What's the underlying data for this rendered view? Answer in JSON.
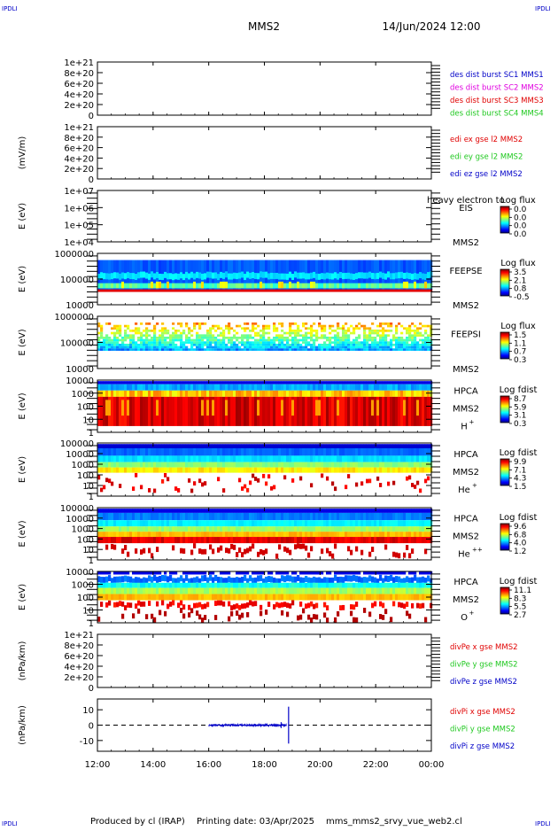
{
  "header": {
    "corner_tl": "IPDLI",
    "corner_tr": "IPDLI",
    "corner_bl": "IPDLI",
    "corner_br": "IPDLI",
    "spacecraft": "MMS2",
    "datetime": "14/Jun/2024 12:00"
  },
  "footer": {
    "produced": "Produced by cl (IRAP)",
    "printing": "Printing date: 03/Apr/2025",
    "file": "mms_mms2_srvy_vue_web2.cl"
  },
  "colors": {
    "red": "#e00000",
    "green": "#1ec81e",
    "blue": "#0000c8",
    "magenta": "#e000e0"
  },
  "chart_data": [
    {
      "id": "p1",
      "type": "line",
      "ylabel": "",
      "ytick_labels": [
        "1e+21",
        "8e+20",
        "6e+20",
        "4e+20",
        "2e+20",
        "0"
      ],
      "ylim": [
        0,
        1e+21
      ],
      "legend": [
        {
          "text": "des dist burst SC1 MMS1",
          "color": "#0000c8"
        },
        {
          "text": "des dist burst SC2 MMS2",
          "color": "#e000e0"
        },
        {
          "text": "des dist burst SC3 MMS3",
          "color": "#e00000"
        },
        {
          "text": "des dist burst SC4 MMS4",
          "color": "#1ec81e"
        }
      ],
      "series": []
    },
    {
      "id": "p2",
      "type": "line",
      "ylabel": "(mV/m)",
      "ytick_labels": [
        "1e+21",
        "8e+20",
        "6e+20",
        "4e+20",
        "2e+20",
        "0"
      ],
      "ylim": [
        0,
        1e+21
      ],
      "legend": [
        {
          "text": "edi ex gse l2 MMS2",
          "color": "#e00000"
        },
        {
          "text": "edi ey gse l2 MMS2",
          "color": "#1ec81e"
        },
        {
          "text": "edi ez gse l2 MMS2",
          "color": "#0000c8"
        }
      ],
      "series": []
    },
    {
      "id": "p3",
      "type": "heatmap",
      "ylabel": "E (eV)",
      "ytick_labels": [
        "1e+07",
        "1e+06",
        "1e+05",
        "1e+04"
      ],
      "yscale": "log",
      "ylim": [
        10000,
        10000000
      ],
      "instrument": "EIS",
      "instrument_sub": "MMS2",
      "overlay_text": "heavy electron to",
      "cbar_title": "Log flux",
      "cbar_ticks": [
        "0.0",
        "0.0",
        "0.0",
        "0.0"
      ],
      "data_extent": []
    },
    {
      "id": "p4",
      "type": "heatmap",
      "ylabel": "E (eV)",
      "ytick_labels": [
        "1000000",
        "100000",
        "10000"
      ],
      "yscale": "log",
      "ylim": [
        10000,
        1000000
      ],
      "instrument": "FEEPSE",
      "instrument_sub": "MMS2",
      "cbar_title": "Log flux",
      "cbar_ticks": [
        "3.5",
        "2.1",
        "0.8",
        "-0.5"
      ],
      "time_extent": [
        12.0,
        24.0
      ]
    },
    {
      "id": "p5",
      "type": "heatmap",
      "ylabel": "E (eV)",
      "ytick_labels": [
        "1000000",
        "100000",
        "10000"
      ],
      "yscale": "log",
      "ylim": [
        10000,
        1000000
      ],
      "instrument": "FEEPSI",
      "instrument_sub": "MMS2",
      "cbar_title": "Log flux",
      "cbar_ticks": [
        "1.5",
        "1.1",
        "0.7",
        "0.3"
      ],
      "time_extent": [
        12.0,
        24.0
      ]
    },
    {
      "id": "p6",
      "type": "heatmap",
      "ylabel": "E (eV)",
      "ytick_labels": [
        "10000",
        "1000",
        "100",
        "10",
        "1"
      ],
      "yscale": "log",
      "ylim": [
        1,
        40000
      ],
      "instrument": "HPCA",
      "instrument_sub": "MMS2",
      "species": "H",
      "species_sup": "+",
      "cbar_title": "Log fdist",
      "cbar_ticks": [
        "8.7",
        "5.9",
        "3.1",
        "0.3"
      ],
      "time_extent": [
        12.0,
        24.0
      ]
    },
    {
      "id": "p7",
      "type": "heatmap",
      "ylabel": "E (eV)",
      "ytick_labels": [
        "100000",
        "10000",
        "1000",
        "100",
        "10",
        "1"
      ],
      "yscale": "log",
      "ylim": [
        1,
        100000
      ],
      "instrument": "HPCA",
      "instrument_sub": "MMS2",
      "species": "He",
      "species_sup": "+",
      "cbar_title": "Log fdist",
      "cbar_ticks": [
        "9.9",
        "7.1",
        "4.3",
        "1.5"
      ],
      "time_extent": [
        12.0,
        24.0
      ]
    },
    {
      "id": "p8",
      "type": "heatmap",
      "ylabel": "E (eV)",
      "ytick_labels": [
        "100000",
        "10000",
        "1000",
        "100",
        "10",
        "1"
      ],
      "yscale": "log",
      "ylim": [
        1,
        100000
      ],
      "instrument": "HPCA",
      "instrument_sub": "MMS2",
      "species": "He",
      "species_sup": "++",
      "cbar_title": "Log fdist",
      "cbar_ticks": [
        "9.6",
        "6.8",
        "4.0",
        "1.2"
      ],
      "time_extent": [
        12.0,
        24.0
      ]
    },
    {
      "id": "p9",
      "type": "heatmap",
      "ylabel": "E (eV)",
      "ytick_labels": [
        "10000",
        "1000",
        "100",
        "10",
        "1"
      ],
      "yscale": "log",
      "ylim": [
        1,
        40000
      ],
      "instrument": "HPCA",
      "instrument_sub": "MMS2",
      "species": "O",
      "species_sup": "+",
      "cbar_title": "Log fdist",
      "cbar_ticks": [
        "11.1",
        "8.3",
        "5.5",
        "2.7"
      ],
      "time_extent": [
        12.0,
        24.0
      ]
    },
    {
      "id": "p10",
      "type": "line",
      "ylabel": "(nPa/km)",
      "ytick_labels": [
        "1e+21",
        "8e+20",
        "6e+20",
        "4e+20",
        "2e+20",
        "0"
      ],
      "ylim": [
        0,
        1e+21
      ],
      "legend": [
        {
          "text": "divPe x gse MMS2",
          "color": "#e00000"
        },
        {
          "text": "divPe y gse MMS2",
          "color": "#1ec81e"
        },
        {
          "text": "divPe z gse MMS2",
          "color": "#0000c8"
        }
      ],
      "series": []
    },
    {
      "id": "p11",
      "type": "line",
      "ylabel": "(nPa/km)",
      "ytick_labels": [
        "10",
        "0",
        "-10"
      ],
      "ylim": [
        -17,
        17
      ],
      "legend": [
        {
          "text": "divPi x gse MMS2",
          "color": "#e00000"
        },
        {
          "text": "divPi y gse MMS2",
          "color": "#1ec81e"
        },
        {
          "text": "divPi z gse MMS2",
          "color": "#0000c8"
        }
      ],
      "series": [
        {
          "component": "z",
          "t_start": 16.0,
          "t_end": 18.8,
          "amplitude": 0.6,
          "color": "#0000c8"
        },
        {
          "component": "spike",
          "t": 18.87,
          "min": -12,
          "max": 12,
          "color": "#0000c8"
        }
      ]
    }
  ],
  "xaxis": {
    "tick_labels": [
      "12:00",
      "14:00",
      "16:00",
      "18:00",
      "20:00",
      "22:00",
      "00:00"
    ],
    "tick_hours": [
      12,
      14,
      16,
      18,
      20,
      22,
      24
    ],
    "range_hours": [
      12,
      24
    ]
  }
}
